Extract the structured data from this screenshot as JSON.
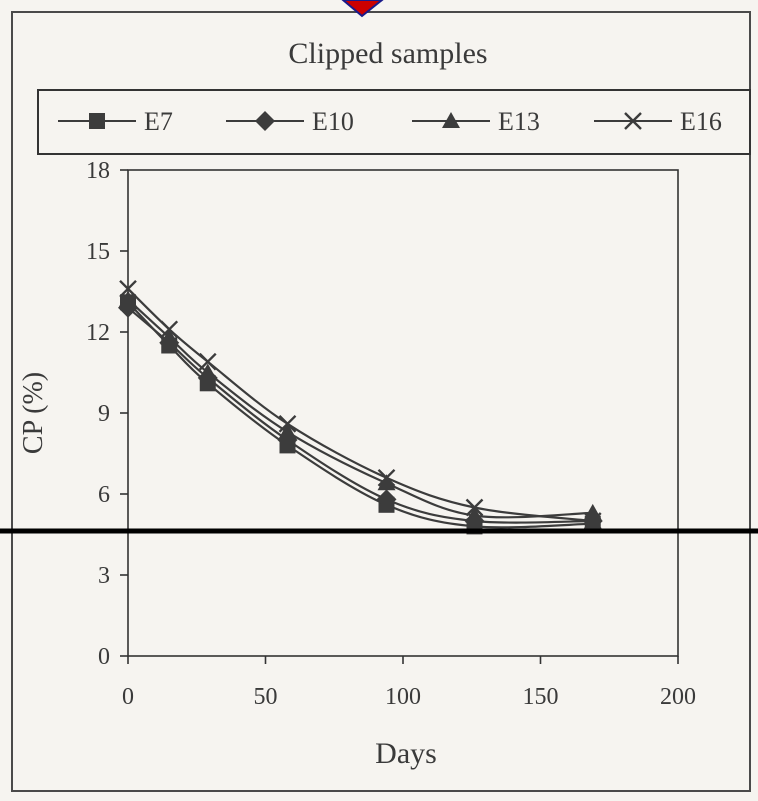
{
  "chart_data": {
    "type": "line",
    "title": "Clipped samples",
    "xlabel": "Days",
    "ylabel": "CP (%)",
    "xlim": [
      0,
      200
    ],
    "ylim": [
      0,
      18
    ],
    "x_ticks": [
      0,
      50,
      100,
      150,
      200
    ],
    "y_ticks": [
      0,
      3,
      6,
      9,
      12,
      15,
      18
    ],
    "grid": false,
    "legend_position": "top",
    "x": [
      0,
      15,
      29,
      58,
      94,
      126,
      169
    ],
    "series": [
      {
        "name": "E7",
        "marker": "square",
        "values": [
          13.1,
          11.5,
          10.1,
          7.8,
          5.6,
          4.8,
          4.9
        ]
      },
      {
        "name": "E10",
        "marker": "diamond",
        "values": [
          12.9,
          11.6,
          10.3,
          8.0,
          5.8,
          5.0,
          5.0
        ]
      },
      {
        "name": "E13",
        "marker": "triangle",
        "values": [
          13.2,
          11.8,
          10.5,
          8.3,
          6.4,
          5.2,
          5.3
        ]
      },
      {
        "name": "E16",
        "marker": "x",
        "values": [
          13.6,
          12.1,
          10.9,
          8.6,
          6.6,
          5.5,
          5.0
        ]
      }
    ],
    "colors": {
      "series": "#3c3c3c",
      "axis": "#2a2a2a",
      "frame": "#4a4a4a",
      "overlay_line": "#000000",
      "marker_accent": "#cc0000"
    }
  }
}
